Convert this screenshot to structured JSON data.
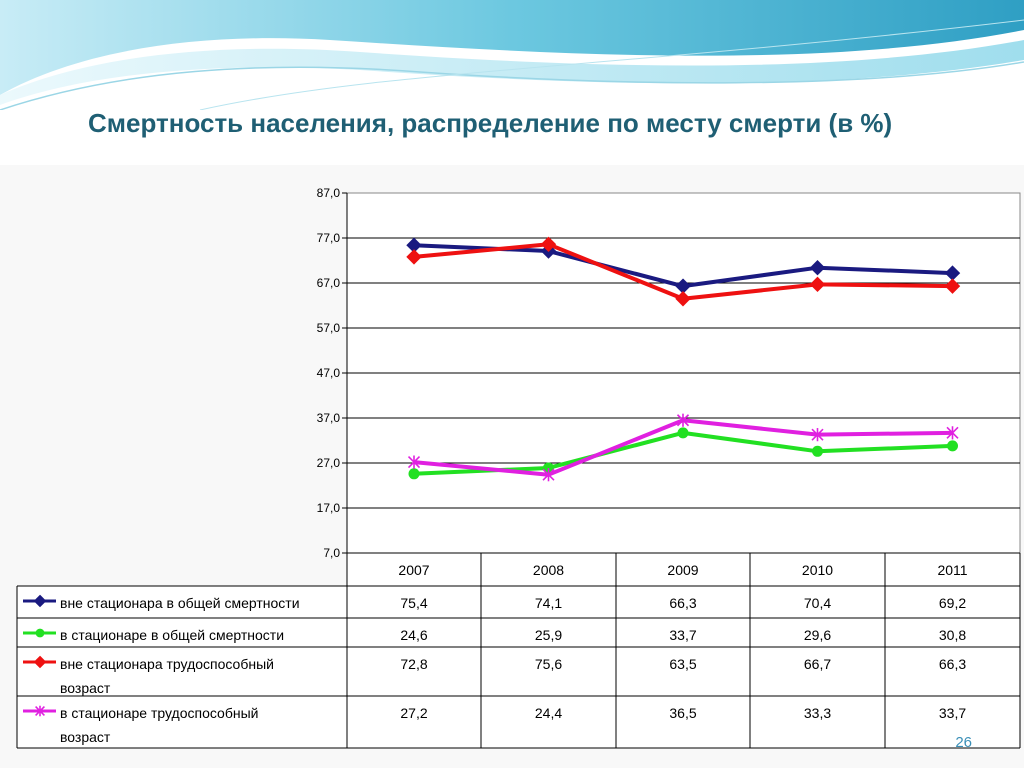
{
  "slide": {
    "title": "Смертность населения, распределение по месту смерти (в %)",
    "page_number": "26"
  },
  "chart_data": {
    "type": "line",
    "categories": [
      "2007",
      "2008",
      "2009",
      "2010",
      "2011"
    ],
    "ylim": [
      7.0,
      87.0
    ],
    "ytick_labels": [
      "7,0",
      "17,0",
      "27,0",
      "37,0",
      "47,0",
      "57,0",
      "67,0",
      "77,0",
      "87,0"
    ],
    "grid": true,
    "legend": "data-table-below",
    "series": [
      {
        "name": "вне стационара в общей смертности",
        "values": [
          75.4,
          74.1,
          66.3,
          70.4,
          69.2
        ],
        "labels": [
          "75,4",
          "74,1",
          "66,3",
          "70,4",
          "69,2"
        ],
        "color": "#1a1a80",
        "marker": "diamond"
      },
      {
        "name": "в стационаре в общей смертности",
        "values": [
          24.6,
          25.9,
          33.7,
          29.6,
          30.8
        ],
        "labels": [
          "24,6",
          "25,9",
          "33,7",
          "29,6",
          "30,8"
        ],
        "color": "#22e022",
        "marker": "circle"
      },
      {
        "name": "вне стационара трудоспособный возраст",
        "values": [
          72.8,
          75.6,
          63.5,
          66.7,
          66.3
        ],
        "labels": [
          "72,8",
          "75,6",
          "63,5",
          "66,7",
          "66,3"
        ],
        "color": "#ee1111",
        "marker": "diamond"
      },
      {
        "name": "в стационаре трудоспособный возраст",
        "values": [
          27.2,
          24.4,
          36.5,
          33.3,
          33.7
        ],
        "labels": [
          "27,2",
          "24,4",
          "36,5",
          "33,3",
          "33,7"
        ],
        "color": "#e020e0",
        "marker": "star"
      }
    ]
  }
}
